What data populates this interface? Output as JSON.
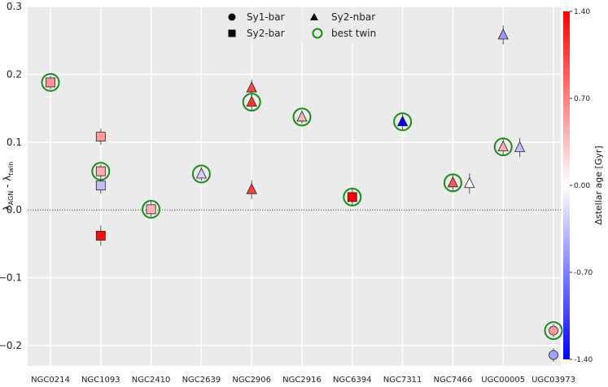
{
  "chart_data": {
    "type": "scatter",
    "title": "",
    "xlabel": "",
    "ylabel": "λ_AGN - λ_twin",
    "ylim": [
      -0.23,
      0.3
    ],
    "yticks": [
      0.3,
      0.2,
      0.1,
      0.0,
      -0.1,
      -0.2
    ],
    "ytick_labels": [
      "0.3",
      "0.2",
      "0.1",
      "0.0",
      "−0.1",
      "−0.2"
    ],
    "categories": [
      "NGC0214",
      "NGC1093",
      "NGC2410",
      "NGC2639",
      "NGC2906",
      "NGC2916",
      "NGC6394",
      "NGC7311",
      "NGC7466",
      "UGC00005",
      "UGC03973"
    ],
    "reference_line_y": 0.0,
    "legend": {
      "placement": "top-center",
      "entries": [
        {
          "label": "Sy1-bar",
          "marker": "circle"
        },
        {
          "label": "Sy2-nbar",
          "marker": "triangle"
        },
        {
          "label": "Sy2-bar",
          "marker": "square"
        },
        {
          "label": "best twin",
          "marker": "ring"
        }
      ]
    },
    "colorbar": {
      "label": "Δstellar age [Gyr]",
      "min": -1.4,
      "max": 1.4,
      "ticks": [
        1.4,
        0.7,
        0.0,
        -0.7,
        -1.4
      ],
      "tick_labels": [
        "1.40",
        "0.70",
        "0.00",
        "-0.70",
        "-1.40"
      ],
      "colors": {
        "low": "#0000ff",
        "mid": "#ffffff",
        "high": "#ff0000"
      }
    },
    "points": [
      {
        "category": "NGC0214",
        "offset": 0,
        "y": 0.188,
        "err": 0.01,
        "marker": "square",
        "age": 0.6,
        "best": true
      },
      {
        "category": "NGC1093",
        "offset": 0,
        "y": 0.108,
        "err": 0.012,
        "marker": "square",
        "age": 0.55,
        "best": false
      },
      {
        "category": "NGC1093",
        "offset": 0,
        "y": 0.057,
        "err": 0.01,
        "marker": "square",
        "age": 0.45,
        "best": true
      },
      {
        "category": "NGC1093",
        "offset": 0,
        "y": 0.036,
        "err": 0.012,
        "marker": "square",
        "age": -0.35,
        "best": false
      },
      {
        "category": "NGC1093",
        "offset": 0,
        "y": -0.038,
        "err": 0.015,
        "marker": "square",
        "age": 1.35,
        "best": false
      },
      {
        "category": "NGC2410",
        "offset": 0,
        "y": 0.001,
        "err": 0.012,
        "marker": "square",
        "age": 0.4,
        "best": true
      },
      {
        "category": "NGC2639",
        "offset": 0,
        "y": 0.053,
        "err": 0.01,
        "marker": "triangle",
        "age": -0.25,
        "best": true
      },
      {
        "category": "NGC2906",
        "offset": 0,
        "y": 0.18,
        "err": 0.012,
        "marker": "triangle",
        "age": 1.0,
        "best": false
      },
      {
        "category": "NGC2906",
        "offset": 0,
        "y": 0.159,
        "err": 0.012,
        "marker": "triangle",
        "age": 1.1,
        "best": true
      },
      {
        "category": "NGC2906",
        "offset": 0,
        "y": 0.03,
        "err": 0.014,
        "marker": "triangle",
        "age": 1.05,
        "best": false
      },
      {
        "category": "NGC2916",
        "offset": 0,
        "y": 0.137,
        "err": 0.01,
        "marker": "triangle",
        "age": 0.4,
        "best": true
      },
      {
        "category": "NGC6394",
        "offset": 0,
        "y": 0.019,
        "err": 0.012,
        "marker": "square",
        "age": 1.4,
        "best": true
      },
      {
        "category": "NGC7311",
        "offset": 0,
        "y": 0.13,
        "err": 0.012,
        "marker": "triangle",
        "age": -1.4,
        "best": true
      },
      {
        "category": "NGC7466",
        "offset": 0,
        "y": 0.04,
        "err": 0.012,
        "marker": "triangle",
        "age": 0.9,
        "best": true
      },
      {
        "category": "NGC7466",
        "offset": 0.33,
        "y": 0.039,
        "err": 0.015,
        "marker": "triangle",
        "age": 0.05,
        "best": false
      },
      {
        "category": "UGC00005",
        "offset": 0,
        "y": 0.258,
        "err": 0.014,
        "marker": "triangle",
        "age": -0.55,
        "best": false
      },
      {
        "category": "UGC00005",
        "offset": 0,
        "y": 0.093,
        "err": 0.012,
        "marker": "triangle",
        "age": 0.45,
        "best": true
      },
      {
        "category": "UGC00005",
        "offset": 0.33,
        "y": 0.092,
        "err": 0.014,
        "marker": "triangle",
        "age": -0.35,
        "best": false
      },
      {
        "category": "UGC03973",
        "offset": 0,
        "y": -0.178,
        "err": 0.01,
        "marker": "circle",
        "age": 0.55,
        "best": true
      },
      {
        "category": "UGC03973",
        "offset": 0,
        "y": -0.214,
        "err": 0.01,
        "marker": "circle",
        "age": -0.5,
        "best": false
      }
    ]
  }
}
